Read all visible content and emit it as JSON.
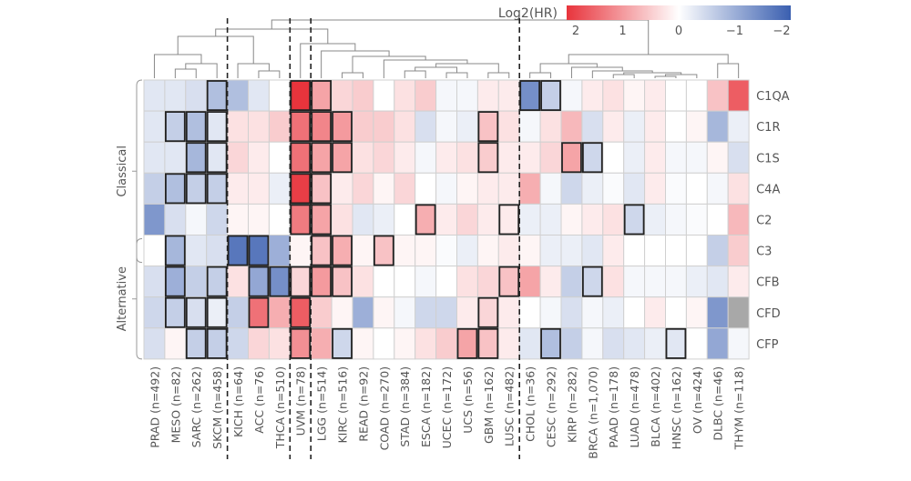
{
  "chart_data": {
    "type": "heatmap",
    "legend": {
      "title": "Log2(HR)",
      "ticks": [
        2,
        1,
        0,
        -1,
        -2
      ],
      "placement": "top-right"
    },
    "colors": {
      "high": "#e8343c",
      "mid": "#ffffff",
      "low": "#3a5fb0",
      "missing": "#a8a8a8"
    },
    "grid": true,
    "row_groups": [
      {
        "label": "Classical",
        "rows": [
          "C1QA",
          "C1R",
          "C1S",
          "C4A",
          "C2",
          "C3"
        ]
      },
      {
        "label": "Alternative",
        "rows": [
          "C3",
          "CFB",
          "CFD",
          "CFP"
        ]
      }
    ],
    "rows": [
      "C1QA",
      "C1R",
      "C1S",
      "C4A",
      "C2",
      "C3",
      "CFB",
      "CFD",
      "CFP"
    ],
    "columns": [
      "PRAD (n=492)",
      "MESO (n=82)",
      "SARC (n=262)",
      "SKCM (n=458)",
      "KICH (n=64)",
      "ACC (n=76)",
      "THCA (n=510)",
      "UVM (n=78)",
      "LGG (n=514)",
      "KIRC (n=516)",
      "READ (n=92)",
      "COAD (n=270)",
      "STAD (n=384)",
      "ESCA (n=182)",
      "UCEC (n=172)",
      "UCS (n=56)",
      "GBM (n=162)",
      "LUSC (n=482)",
      "CHOL (n=36)",
      "CESC (n=292)",
      "KIRP (n=282)",
      "BRCA (n=1,070)",
      "PAAD (n=178)",
      "LUAD (n=478)",
      "BLCA (n=402)",
      "HNSC (n=162)",
      "OV (n=424)",
      "DLBC (n=46)",
      "THYM (n=118)"
    ],
    "values": [
      [
        -0.3,
        -0.3,
        -0.4,
        -0.8,
        -0.8,
        -0.3,
        0,
        2.0,
        0.9,
        0.4,
        0.5,
        0,
        0.3,
        0.5,
        -0.1,
        -0.1,
        0.2,
        0.2,
        -1.4,
        -0.6,
        -0.1,
        0.2,
        0.3,
        0.1,
        0.2,
        0,
        0,
        0.6,
        1.6
      ],
      [
        -0.3,
        -0.6,
        -0.8,
        -0.3,
        0.3,
        0.3,
        0.5,
        1.4,
        1.2,
        1.0,
        0.5,
        0.5,
        0.3,
        -0.4,
        -0.1,
        -0.2,
        0.6,
        0.3,
        -0.1,
        0.3,
        0.7,
        -0.4,
        0.2,
        -0.2,
        0.2,
        0,
        0.1,
        -0.9,
        -0.2
      ],
      [
        -0.3,
        -0.3,
        -0.9,
        -0.3,
        0.4,
        0.2,
        0,
        1.4,
        0.9,
        0.9,
        0.3,
        0.4,
        0.2,
        -0.1,
        0.2,
        0.3,
        0.5,
        0.2,
        0.2,
        0.4,
        0.9,
        -0.5,
        0,
        -0.2,
        0.2,
        -0.1,
        -0.1,
        0.1,
        -0.4
      ],
      [
        -0.6,
        -0.8,
        -0.6,
        -0.6,
        0.2,
        0.2,
        -0.2,
        1.9,
        0.6,
        0.2,
        0.4,
        0.1,
        0.4,
        0,
        -0.1,
        0.1,
        0.2,
        0.2,
        0.8,
        -0.1,
        -0.5,
        -0.2,
        -0.05,
        -0.3,
        0.2,
        -0.05,
        0,
        -0.1,
        0.3
      ],
      [
        -1.3,
        -0.4,
        -0.1,
        -0.5,
        0.1,
        0.1,
        0,
        1.3,
        0.9,
        0.3,
        -0.3,
        -0.2,
        0,
        0.8,
        0.2,
        0.4,
        0.2,
        0.2,
        -0.2,
        -0.2,
        0.1,
        0.2,
        0.3,
        -0.5,
        -0.2,
        -0.1,
        -0.05,
        0,
        0.7
      ],
      [
        0,
        -0.9,
        -0.3,
        -0.4,
        -1.7,
        -1.7,
        -1.0,
        0.1,
        0.6,
        0.8,
        0.1,
        0.6,
        0.1,
        0.1,
        -0.05,
        -0.2,
        0.1,
        0.2,
        0.1,
        -0.2,
        -0.2,
        -0.3,
        0.2,
        0,
        0,
        0,
        0,
        -0.6,
        0.5
      ],
      [
        -0.4,
        -1.0,
        -0.6,
        -0.6,
        0.3,
        -1.1,
        -1.4,
        0.4,
        1.0,
        0.6,
        0.3,
        0,
        0,
        -0.1,
        0,
        0.3,
        0.4,
        0.6,
        0.9,
        0.2,
        -0.6,
        -0.5,
        0.3,
        -0.1,
        -0.1,
        -0.1,
        -0.2,
        -0.3,
        0.2
      ],
      [
        -0.5,
        -0.6,
        -0.4,
        -0.2,
        -0.6,
        1.4,
        0.8,
        1.6,
        0.5,
        0.1,
        -1.0,
        0.1,
        -0.1,
        -0.5,
        -0.5,
        0.2,
        0.4,
        0.2,
        0,
        -0.1,
        -0.4,
        -0.1,
        -0.2,
        0,
        0.2,
        0,
        0.1,
        -1.3,
        null
      ],
      [
        -0.4,
        0.1,
        -0.6,
        -0.6,
        -0.5,
        0.4,
        0.3,
        1.1,
        0.8,
        -0.5,
        0.1,
        0,
        0.1,
        0.3,
        0.5,
        0.9,
        0.6,
        0.2,
        -0.3,
        -0.8,
        -0.6,
        -0.1,
        -0.4,
        -0.3,
        -0.2,
        -0.3,
        0,
        -1.1,
        -0.1
      ]
    ],
    "significant": [
      [
        0,
        0,
        0,
        1,
        0,
        0,
        0,
        1,
        1,
        0,
        0,
        0,
        0,
        0,
        0,
        0,
        0,
        0,
        1,
        1,
        0,
        0,
        0,
        0,
        0,
        0,
        0,
        0,
        0
      ],
      [
        0,
        1,
        1,
        1,
        0,
        0,
        0,
        1,
        1,
        1,
        0,
        0,
        0,
        0,
        0,
        0,
        1,
        0,
        0,
        0,
        0,
        0,
        0,
        0,
        0,
        0,
        0,
        0,
        0
      ],
      [
        0,
        0,
        1,
        1,
        0,
        0,
        0,
        1,
        1,
        1,
        0,
        0,
        0,
        0,
        0,
        0,
        1,
        0,
        0,
        0,
        1,
        1,
        0,
        0,
        0,
        0,
        0,
        0,
        0
      ],
      [
        0,
        1,
        1,
        1,
        0,
        0,
        0,
        1,
        1,
        0,
        0,
        0,
        0,
        0,
        0,
        0,
        0,
        0,
        0,
        0,
        0,
        0,
        0,
        0,
        0,
        0,
        0,
        0,
        0
      ],
      [
        0,
        0,
        0,
        0,
        0,
        0,
        0,
        1,
        1,
        0,
        0,
        0,
        0,
        1,
        0,
        0,
        0,
        1,
        0,
        0,
        0,
        0,
        0,
        1,
        0,
        0,
        0,
        0,
        0
      ],
      [
        0,
        1,
        0,
        0,
        1,
        1,
        0,
        0,
        1,
        1,
        0,
        1,
        0,
        0,
        0,
        0,
        0,
        0,
        0,
        0,
        0,
        0,
        0,
        0,
        0,
        0,
        0,
        0,
        0
      ],
      [
        0,
        1,
        0,
        1,
        0,
        1,
        1,
        1,
        1,
        1,
        0,
        0,
        0,
        0,
        0,
        0,
        0,
        1,
        0,
        0,
        0,
        1,
        0,
        0,
        0,
        0,
        0,
        0,
        0
      ],
      [
        0,
        1,
        1,
        1,
        0,
        1,
        0,
        1,
        0,
        0,
        0,
        0,
        0,
        0,
        0,
        0,
        1,
        0,
        0,
        0,
        0,
        0,
        0,
        0,
        0,
        0,
        0,
        0,
        0
      ],
      [
        0,
        0,
        1,
        1,
        0,
        0,
        0,
        1,
        0,
        1,
        0,
        0,
        0,
        0,
        0,
        1,
        1,
        0,
        0,
        1,
        0,
        0,
        0,
        0,
        0,
        1,
        0,
        0,
        0
      ]
    ]
  }
}
